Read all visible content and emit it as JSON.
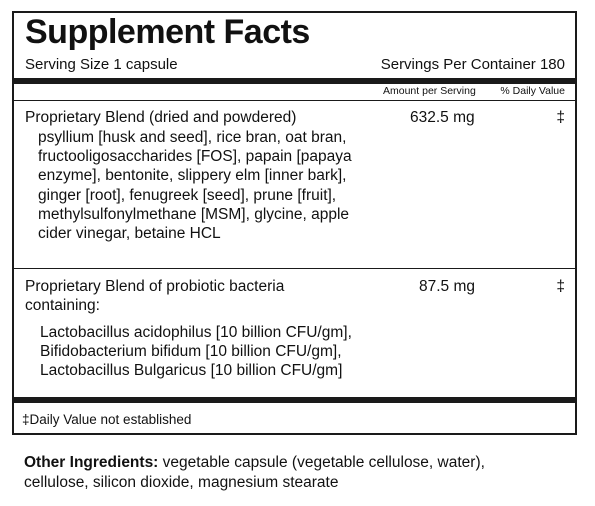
{
  "panel": {
    "title": "Supplement Facts",
    "serving_size": "Serving Size  1 capsule",
    "servings_per_container": "Servings Per Container  180",
    "col_amount": "Amount per Serving",
    "col_dv": "% Daily Value",
    "rows": [
      {
        "name": "Proprietary Blend (dried and powdered)",
        "amount": "632.5 mg",
        "dv": "‡",
        "ingredients": [
          "psyllium [husk and seed], rice bran, oat bran,",
          "fructooligosaccharides [FOS], papain [papaya",
          "enzyme], bentonite, slippery elm [inner bark],",
          "ginger [root], fenugreek [seed], prune [fruit],",
          "methylsulfonylmethane [MSM], glycine, apple",
          "cider vinegar, betaine HCL"
        ]
      },
      {
        "name_lines": [
          "Proprietary Blend of probiotic bacteria",
          "containing:"
        ],
        "amount": "87.5 mg",
        "dv": "‡",
        "ingredients": [
          "Lactobacillus acidophilus [10 billion CFU/gm],",
          "Bifidobacterium bifidum [10 billion CFU/gm],",
          "Lactobacillus Bulgaricus [10 billion CFU/gm]"
        ]
      }
    ],
    "footnote": "‡Daily Value not established"
  },
  "other_ingredients": {
    "label": "Other Ingredients:",
    "text_line1": " vegetable capsule (vegetable cellulose, water),",
    "text_line2": "cellulose, silicon dioxide, magnesium stearate"
  }
}
